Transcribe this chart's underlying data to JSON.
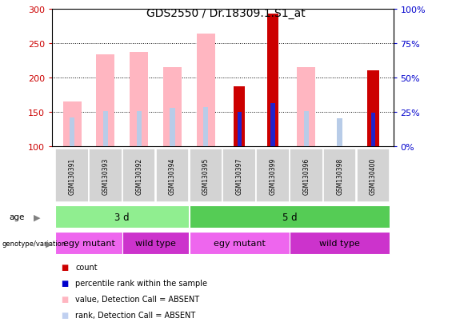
{
  "title": "GDS2550 / Dr.18309.1.S1_at",
  "samples": [
    "GSM130391",
    "GSM130393",
    "GSM130392",
    "GSM130394",
    "GSM130395",
    "GSM130397",
    "GSM130399",
    "GSM130396",
    "GSM130398",
    "GSM130400"
  ],
  "ylim_left": [
    100,
    300
  ],
  "ylim_right": [
    0,
    100
  ],
  "yticks_left": [
    100,
    150,
    200,
    250,
    300
  ],
  "yticks_right": [
    0,
    25,
    50,
    75,
    100
  ],
  "ytick_labels_right": [
    "0%",
    "25%",
    "50%",
    "75%",
    "100%"
  ],
  "value_bars": [
    null,
    null,
    null,
    null,
    null,
    188,
    293,
    null,
    null,
    211
  ],
  "rank_bars": [
    null,
    null,
    null,
    null,
    null,
    150,
    163,
    null,
    null,
    149
  ],
  "pink_value_bars": [
    165,
    234,
    238,
    216,
    264,
    null,
    null,
    216,
    null,
    null
  ],
  "pink_rank_bars": [
    142,
    151,
    152,
    156,
    157,
    null,
    null,
    151,
    141,
    null
  ],
  "age_groups": [
    {
      "label": "3 d",
      "start": 0,
      "end": 4,
      "color": "#90EE90"
    },
    {
      "label": "5 d",
      "start": 4,
      "end": 10,
      "color": "#55CC55"
    }
  ],
  "genotype_groups": [
    {
      "label": "egy mutant",
      "start": 0,
      "end": 2,
      "color": "#EE66EE"
    },
    {
      "label": "wild type",
      "start": 2,
      "end": 4,
      "color": "#CC33CC"
    },
    {
      "label": "egy mutant",
      "start": 4,
      "end": 7,
      "color": "#EE66EE"
    },
    {
      "label": "wild type",
      "start": 7,
      "end": 10,
      "color": "#CC33CC"
    }
  ],
  "left_ylabel_color": "#CC0000",
  "right_ylabel_color": "#0000CC",
  "legend_items": [
    {
      "label": "count",
      "color": "#CC0000"
    },
    {
      "label": "percentile rank within the sample",
      "color": "#0000CC"
    },
    {
      "label": "value, Detection Call = ABSENT",
      "color": "#FFB6C1"
    },
    {
      "label": "rank, Detection Call = ABSENT",
      "color": "#C0D0F0"
    }
  ]
}
